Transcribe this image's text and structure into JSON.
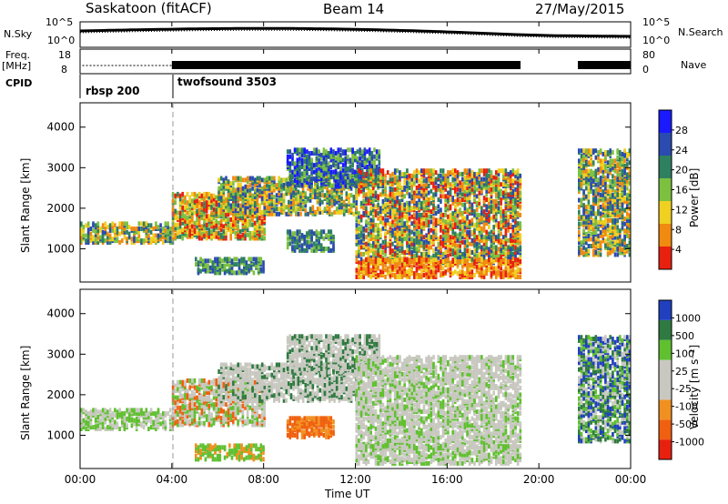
{
  "header": {
    "site": "Saskatoon (fitACF)",
    "beam": "Beam 14",
    "date": "27/May/2015"
  },
  "strips": {
    "nsky_label": "N.Sky",
    "nsky_ticks": [
      "10^5",
      "10^0"
    ],
    "nsearch_label": "N.Search",
    "nsearch_ticks": [
      "10^5",
      "10^0"
    ],
    "freq_label_1": "Freq.",
    "freq_label_2": "[MHz]",
    "freq_ticks": [
      "18",
      "8"
    ],
    "nave_label": "Nave",
    "nave_ticks": [
      "80",
      "0"
    ],
    "cpid_label": "CPID",
    "cpid_entries": [
      {
        "name": "rbsp 200",
        "start_hour": 0
      },
      {
        "name": "twofsound 3503",
        "start_hour": 4
      }
    ]
  },
  "chart_data": [
    {
      "type": "heatmap",
      "name": "Power",
      "ylabel": "Slant Range [km]",
      "ylim": [
        180,
        4600
      ],
      "yticks": [
        "1000",
        "2000",
        "3000",
        "4000"
      ],
      "colorbar_label": "Power [dB]",
      "colorbar_ticks": [
        "28",
        "24",
        "20",
        "16",
        "12",
        "8",
        "4"
      ],
      "colors": [
        "#1a1aff",
        "#2a4bb0",
        "#2f8060",
        "#7cc040",
        "#f0d020",
        "#f08a10",
        "#e82010"
      ],
      "gaps_ut_hours": [
        [
          19.2,
          20.7
        ],
        [
          21.2,
          21.7
        ]
      ]
    },
    {
      "type": "heatmap",
      "name": "Velocity",
      "ylabel": "Slant Range [km]",
      "ylim": [
        180,
        4600
      ],
      "yticks": [
        "1000",
        "2000",
        "3000",
        "4000"
      ],
      "colorbar_label": "Velocity [m s⁻¹]",
      "colorbar_ticks": [
        "1000",
        "500",
        "100",
        "25",
        "-25",
        "-100",
        "-500",
        "-1000"
      ],
      "colors": [
        "#2040c0",
        "#2f7a40",
        "#60c030",
        "#c8c8c0",
        "#c8c8c0",
        "#f09020",
        "#f06010",
        "#e82010"
      ],
      "xlabel": "Time UT",
      "xticks": [
        "00:00",
        "04:00",
        "08:00",
        "12:00",
        "16:00",
        "20:00",
        "00:00"
      ],
      "xlim_hours": [
        0,
        24
      ]
    }
  ]
}
